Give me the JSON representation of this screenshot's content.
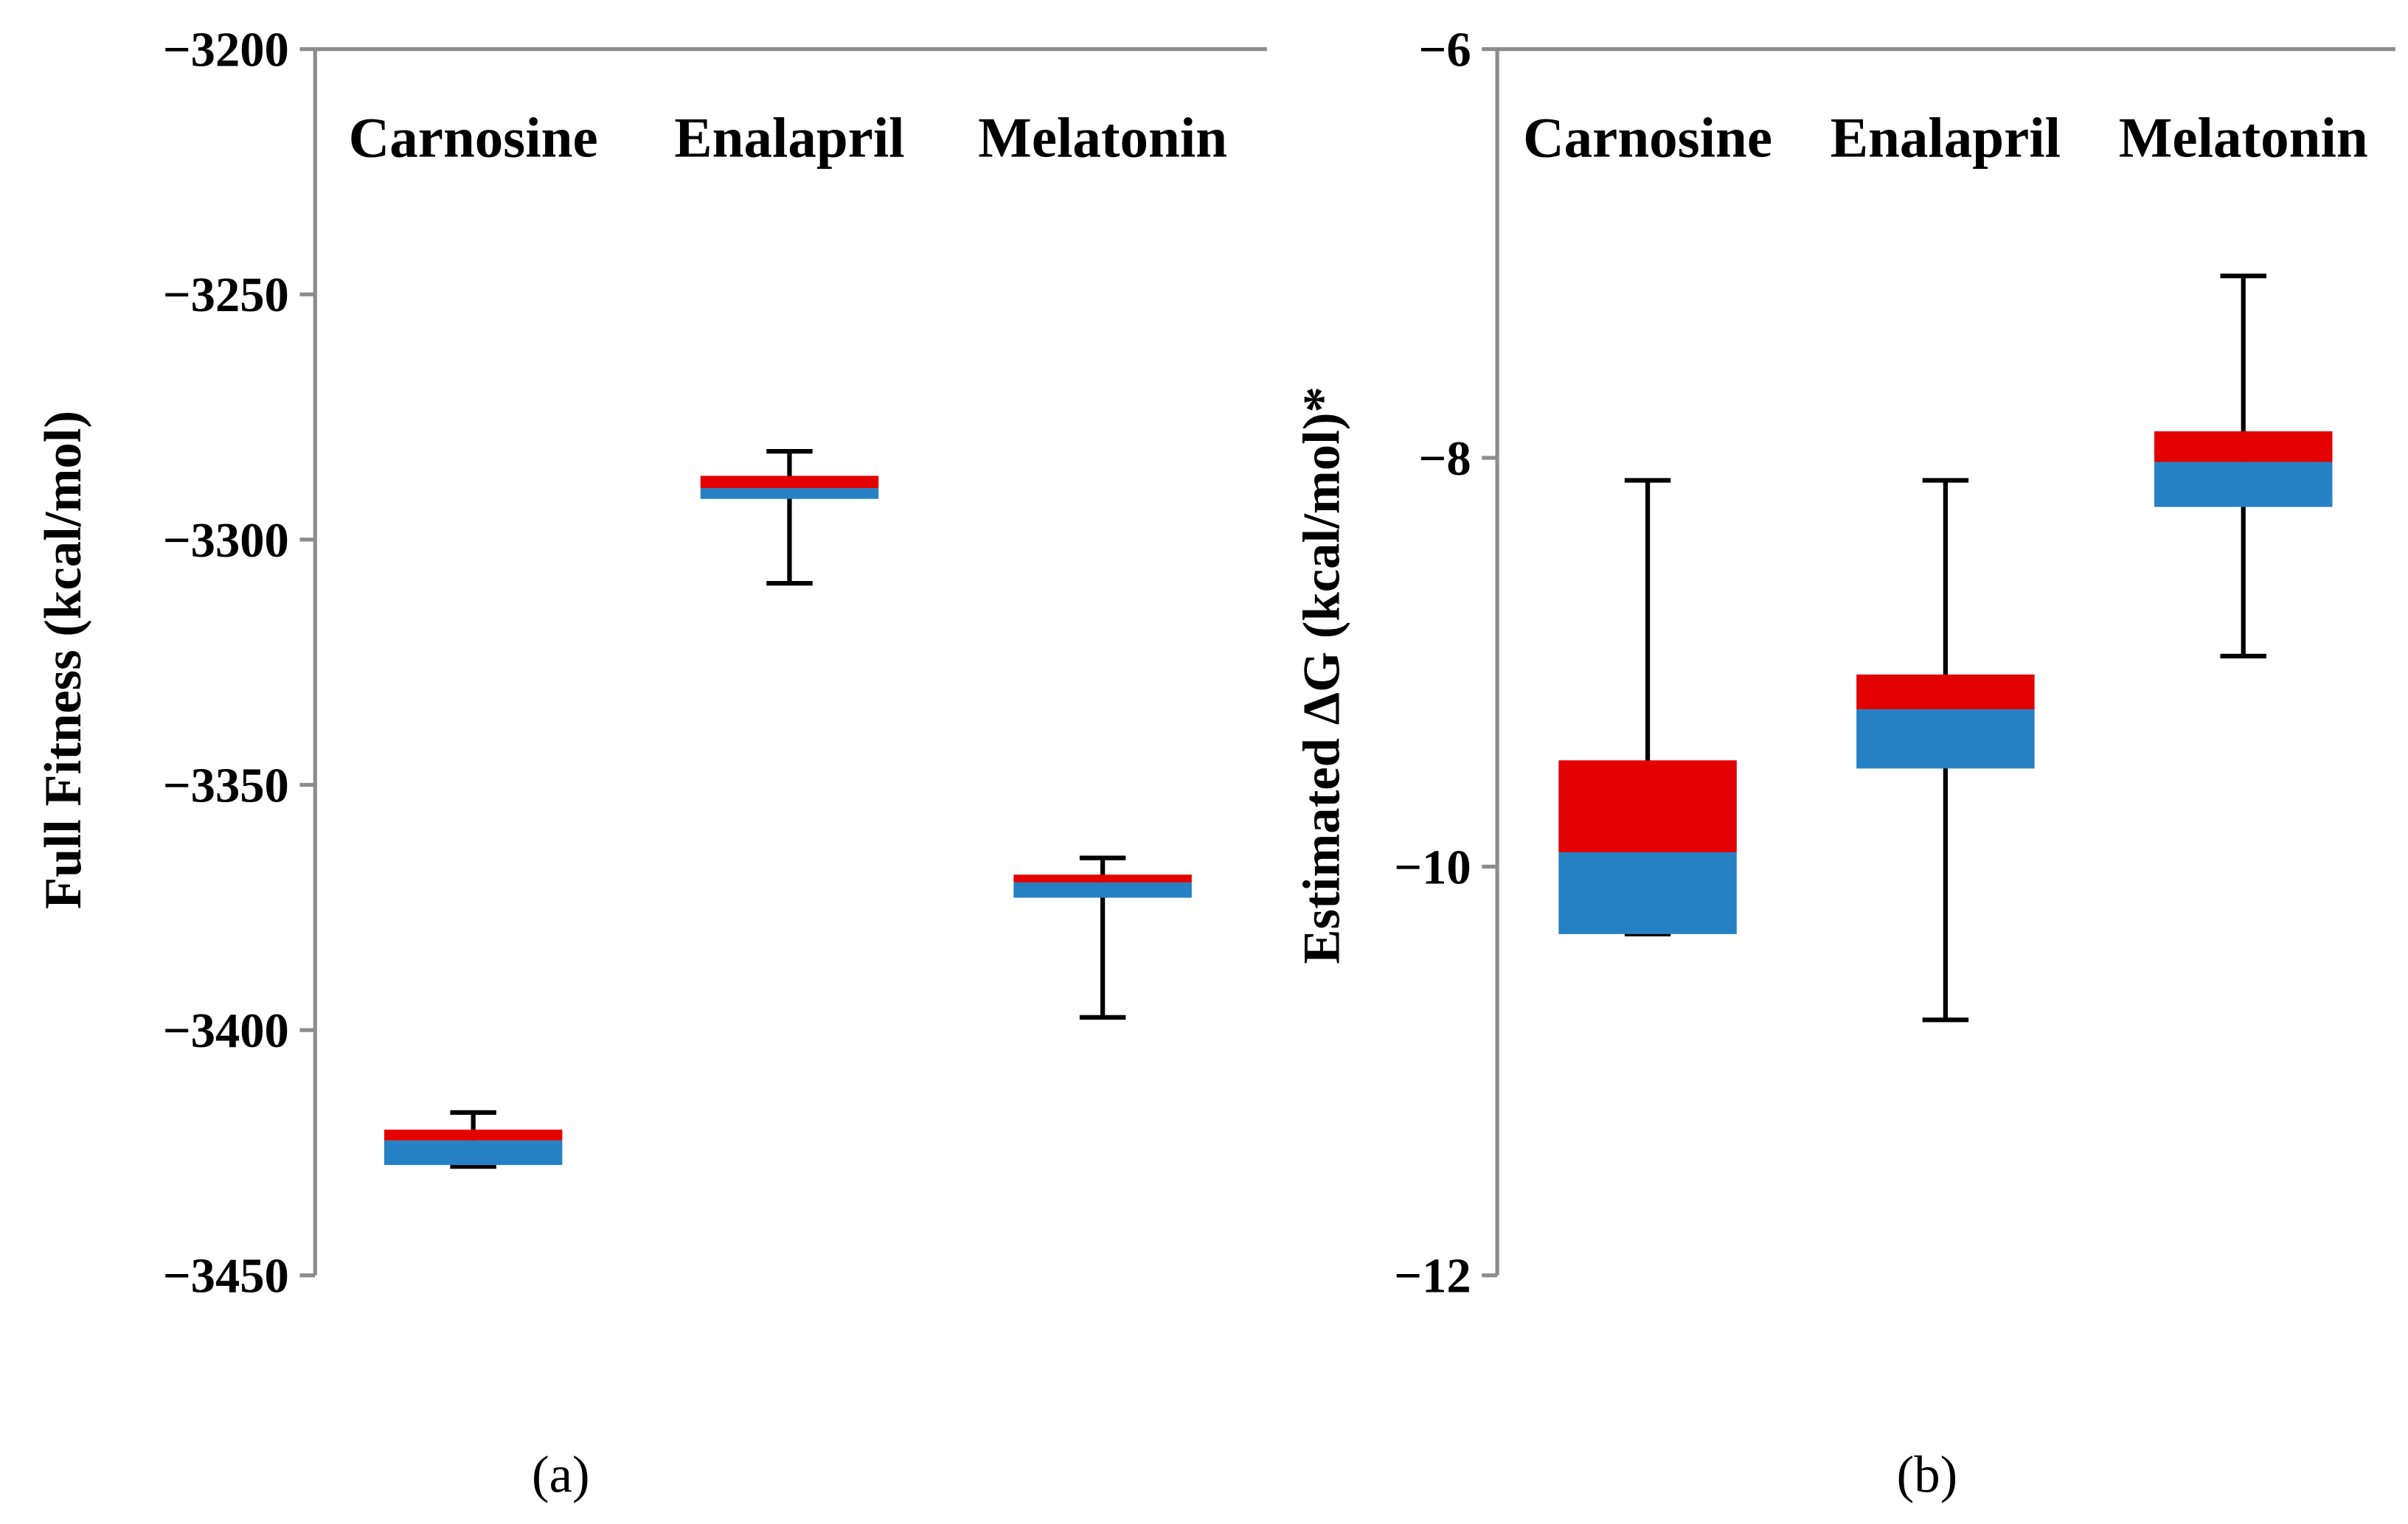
{
  "chart_data": [
    {
      "type": "box",
      "panel_label": "(a)",
      "ylabel": "Full Fitness (kcal/mol)",
      "ylim": [
        -3450,
        -3200
      ],
      "yticks": [
        -3200,
        -3250,
        -3300,
        -3350,
        -3400,
        -3450
      ],
      "ytick_labels": [
        "−3200",
        "−3250",
        "−3300",
        "−3350",
        "−3400",
        "−3450"
      ],
      "categories": [
        "Carnosine",
        "Enalapril",
        "Melatonin"
      ],
      "series": [
        {
          "name": "Carnosine",
          "whisker_high": -3416.8,
          "q3": -3420.3,
          "median": -3422.5,
          "q1": -3427.5,
          "whisker_low": -3427.8
        },
        {
          "name": "Enalapril",
          "whisker_high": -3282.0,
          "q3": -3287.0,
          "median": -3289.5,
          "q1": -3291.7,
          "whisker_low": -3308.9
        },
        {
          "name": "Melatonin",
          "whisker_high": -3364.9,
          "q3": -3368.3,
          "median": -3369.9,
          "q1": -3373.0,
          "whisker_low": -3397.4
        }
      ],
      "colors": {
        "upper_box": "#e30000",
        "lower_box": "#2581c4",
        "axis": "#8c8c8c"
      }
    },
    {
      "type": "box",
      "panel_label": "(b)",
      "ylabel": "Estimated ΔG (kcal/mol)*",
      "ylim": [
        -12,
        -6
      ],
      "yticks": [
        -6,
        -8,
        -10,
        -12
      ],
      "ytick_labels": [
        "−6",
        "−8",
        "−10",
        "−12"
      ],
      "categories": [
        "Carnosine",
        "Enalapril",
        "Melatonin"
      ],
      "series": [
        {
          "name": "Carnosine",
          "whisker_high": -8.11,
          "q3": -9.48,
          "median": -9.93,
          "q1": -10.33,
          "whisker_low": -10.33
        },
        {
          "name": "Enalapril",
          "whisker_high": -8.11,
          "q3": -9.06,
          "median": -9.23,
          "q1": -9.52,
          "whisker_low": -10.75
        },
        {
          "name": "Melatonin",
          "whisker_high": -7.11,
          "q3": -7.87,
          "median": -8.02,
          "q1": -8.24,
          "whisker_low": -8.97
        }
      ],
      "colors": {
        "upper_box": "#e30000",
        "lower_box": "#2581c4",
        "axis": "#8c8c8c"
      }
    }
  ]
}
